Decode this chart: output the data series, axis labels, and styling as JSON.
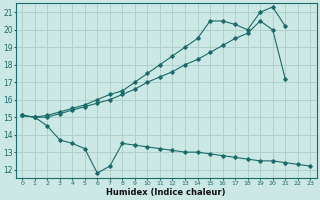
{
  "bg_color": "#cce8e4",
  "grid_color": "#b0d0cc",
  "line_color": "#1a6b6b",
  "xlabel": "Humidex (Indice chaleur)",
  "xlim": [
    -0.5,
    23.5
  ],
  "ylim": [
    11.5,
    21.5
  ],
  "yticks": [
    12,
    13,
    14,
    15,
    16,
    17,
    18,
    19,
    20,
    21
  ],
  "xticks": [
    0,
    1,
    2,
    3,
    4,
    5,
    6,
    7,
    8,
    9,
    10,
    11,
    12,
    13,
    14,
    15,
    16,
    17,
    18,
    19,
    20,
    21,
    22,
    23
  ],
  "line1_x": [
    0,
    1,
    2,
    3,
    4,
    5,
    6,
    7,
    8,
    9,
    10,
    11,
    12,
    13,
    14,
    15,
    16,
    17,
    18,
    19,
    20,
    21,
    22,
    23
  ],
  "line1_y": [
    15.1,
    15.0,
    14.5,
    13.7,
    13.5,
    13.2,
    11.8,
    12.2,
    13.5,
    13.4,
    13.3,
    13.2,
    13.1,
    13.0,
    13.0,
    12.9,
    12.8,
    12.7,
    12.6,
    12.5,
    12.5,
    12.4,
    12.3,
    12.2
  ],
  "line2_x": [
    0,
    1,
    2,
    3,
    4,
    5,
    6,
    7,
    8,
    9,
    10,
    11,
    12,
    13,
    14,
    15,
    16,
    17,
    18,
    19,
    20,
    21
  ],
  "line2_y": [
    15.1,
    15.0,
    15.0,
    15.2,
    15.4,
    15.6,
    15.8,
    16.0,
    16.3,
    16.6,
    17.0,
    17.3,
    17.6,
    18.0,
    18.3,
    18.7,
    19.1,
    19.5,
    19.8,
    20.5,
    20.0,
    17.2
  ],
  "line3_x": [
    0,
    1,
    2,
    3,
    4,
    5,
    6,
    7,
    8,
    9,
    10,
    11,
    12,
    13,
    14,
    15,
    16,
    17,
    18,
    19,
    20,
    21
  ],
  "line3_y": [
    15.1,
    15.0,
    15.1,
    15.3,
    15.5,
    15.7,
    16.0,
    16.3,
    16.5,
    17.0,
    17.5,
    18.0,
    18.5,
    19.0,
    19.5,
    20.5,
    20.5,
    20.3,
    20.0,
    21.0,
    21.3,
    20.2
  ]
}
